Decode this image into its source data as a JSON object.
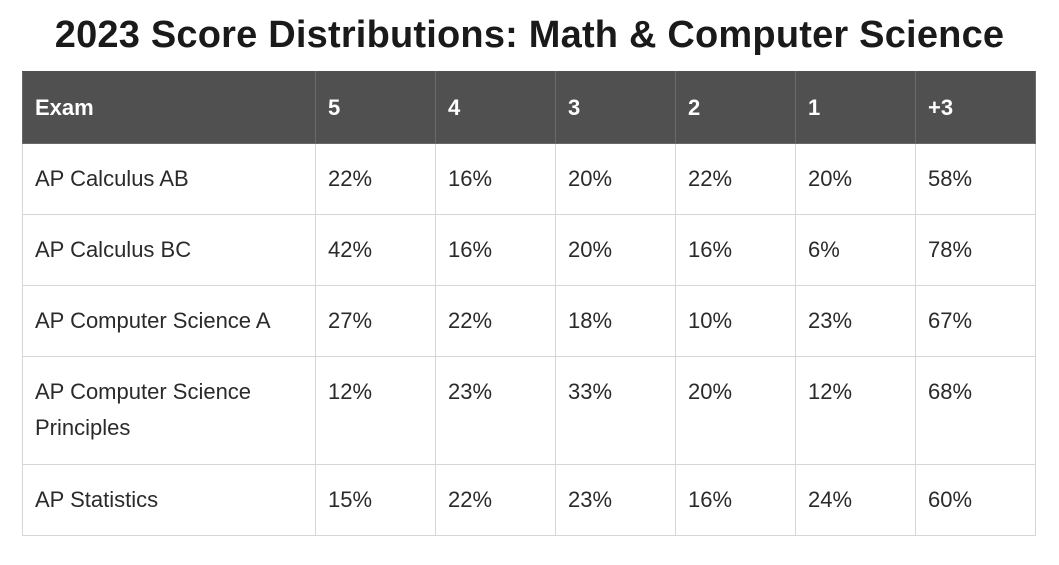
{
  "title": "2023 Score Distributions: Math & Computer Science",
  "table": {
    "headers": [
      "Exam",
      "5",
      "4",
      "3",
      "2",
      "1",
      "+3"
    ],
    "rows": [
      [
        "AP Calculus AB",
        "22%",
        "16%",
        "20%",
        "22%",
        "20%",
        "58%"
      ],
      [
        "AP Calculus BC",
        "42%",
        "16%",
        "20%",
        "16%",
        "6%",
        "78%"
      ],
      [
        "AP Computer Science A",
        "27%",
        "22%",
        "18%",
        "10%",
        "23%",
        "67%"
      ],
      [
        "AP Computer Science Principles",
        "12%",
        "23%",
        "33%",
        "20%",
        "12%",
        "68%"
      ],
      [
        "AP Statistics",
        "15%",
        "22%",
        "23%",
        "16%",
        "24%",
        "60%"
      ]
    ]
  },
  "colors": {
    "header_background": "#505050",
    "header_text": "#ffffff",
    "border": "#d6d6d6"
  }
}
